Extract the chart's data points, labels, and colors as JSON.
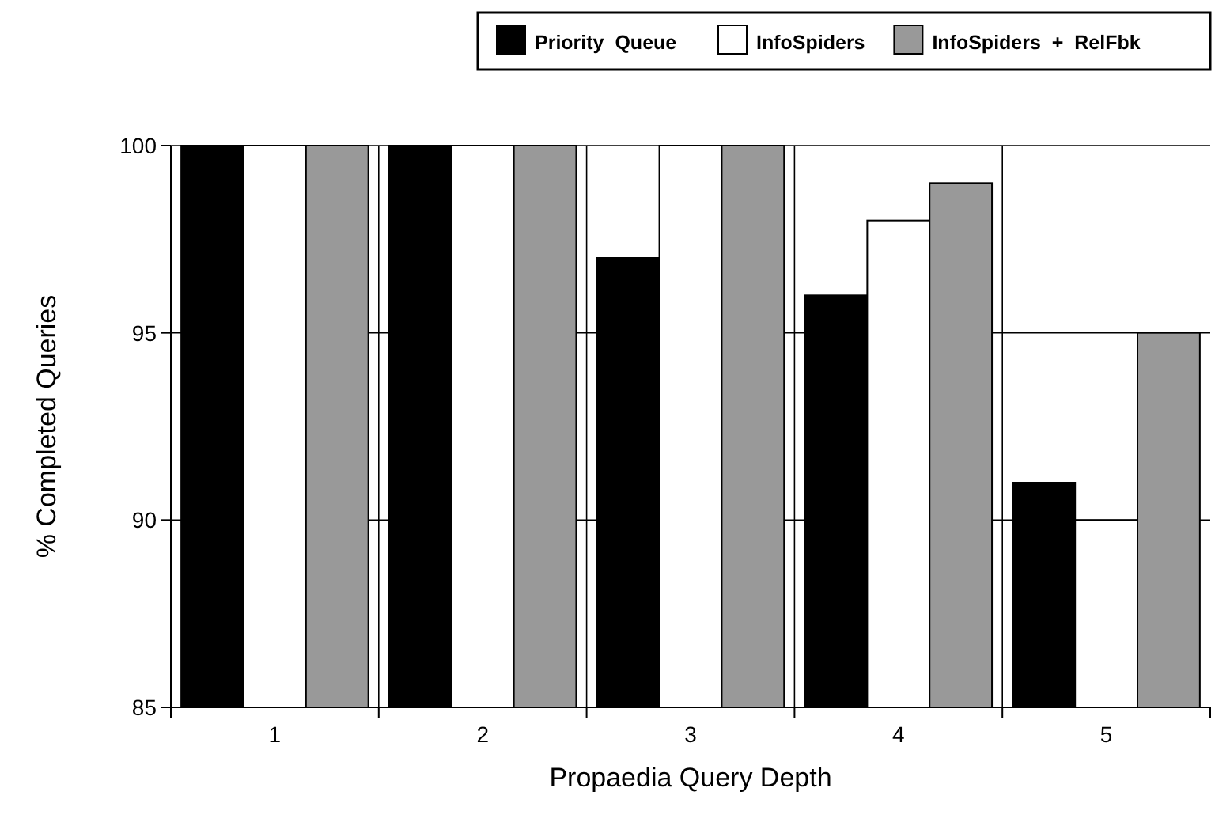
{
  "chart_data": {
    "type": "bar",
    "xlabel": "Propaedia Query Depth",
    "ylabel": "% Completed Queries",
    "categories": [
      "1",
      "2",
      "3",
      "4",
      "5"
    ],
    "series": [
      {
        "name": "Priority  Queue",
        "color": "#000000",
        "values": [
          100,
          100,
          97,
          96,
          91
        ]
      },
      {
        "name": "InfoSpiders",
        "color": "#ffffff",
        "values": [
          100,
          100,
          100,
          98,
          90
        ]
      },
      {
        "name": "InfoSpiders  +  RelFbk",
        "color": "#999999",
        "values": [
          100,
          100,
          100,
          99,
          95
        ]
      }
    ],
    "ylim": [
      85,
      100
    ],
    "yticks": [
      85,
      90,
      95,
      100
    ],
    "grid": true,
    "legend": "top right"
  }
}
